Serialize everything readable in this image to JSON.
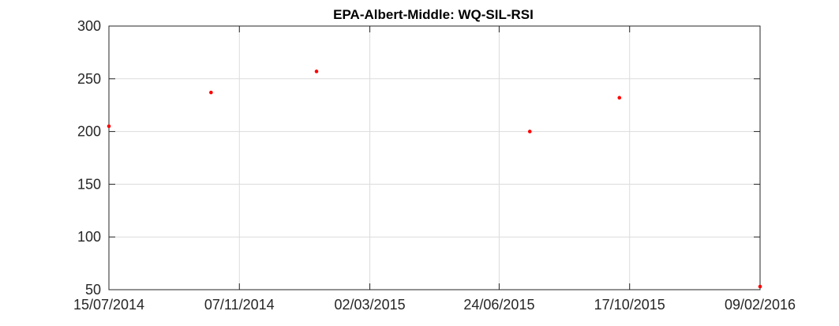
{
  "chart_data": {
    "type": "scatter",
    "title": "EPA-Albert-Middle: WQ-SIL-RSI",
    "xlabel": "",
    "ylabel": "",
    "x_ticks": [
      "15/07/2014",
      "07/11/2014",
      "02/03/2015",
      "24/06/2015",
      "17/10/2015",
      "09/02/2016"
    ],
    "xlim": [
      "15/07/2014",
      "09/02/2016"
    ],
    "ylim": [
      50,
      300
    ],
    "y_ticks": [
      50,
      100,
      150,
      200,
      250,
      300
    ],
    "grid": true,
    "series": [
      {
        "color": "#ff0000",
        "points": [
          {
            "x": "15/07/2014",
            "y": 205
          },
          {
            "x": "13/10/2014",
            "y": 237
          },
          {
            "x": "14/01/2015",
            "y": 257
          },
          {
            "x": "21/07/2015",
            "y": 200
          },
          {
            "x": "08/10/2015",
            "y": 232
          },
          {
            "x": "09/02/2016",
            "y": 53
          }
        ]
      }
    ]
  }
}
